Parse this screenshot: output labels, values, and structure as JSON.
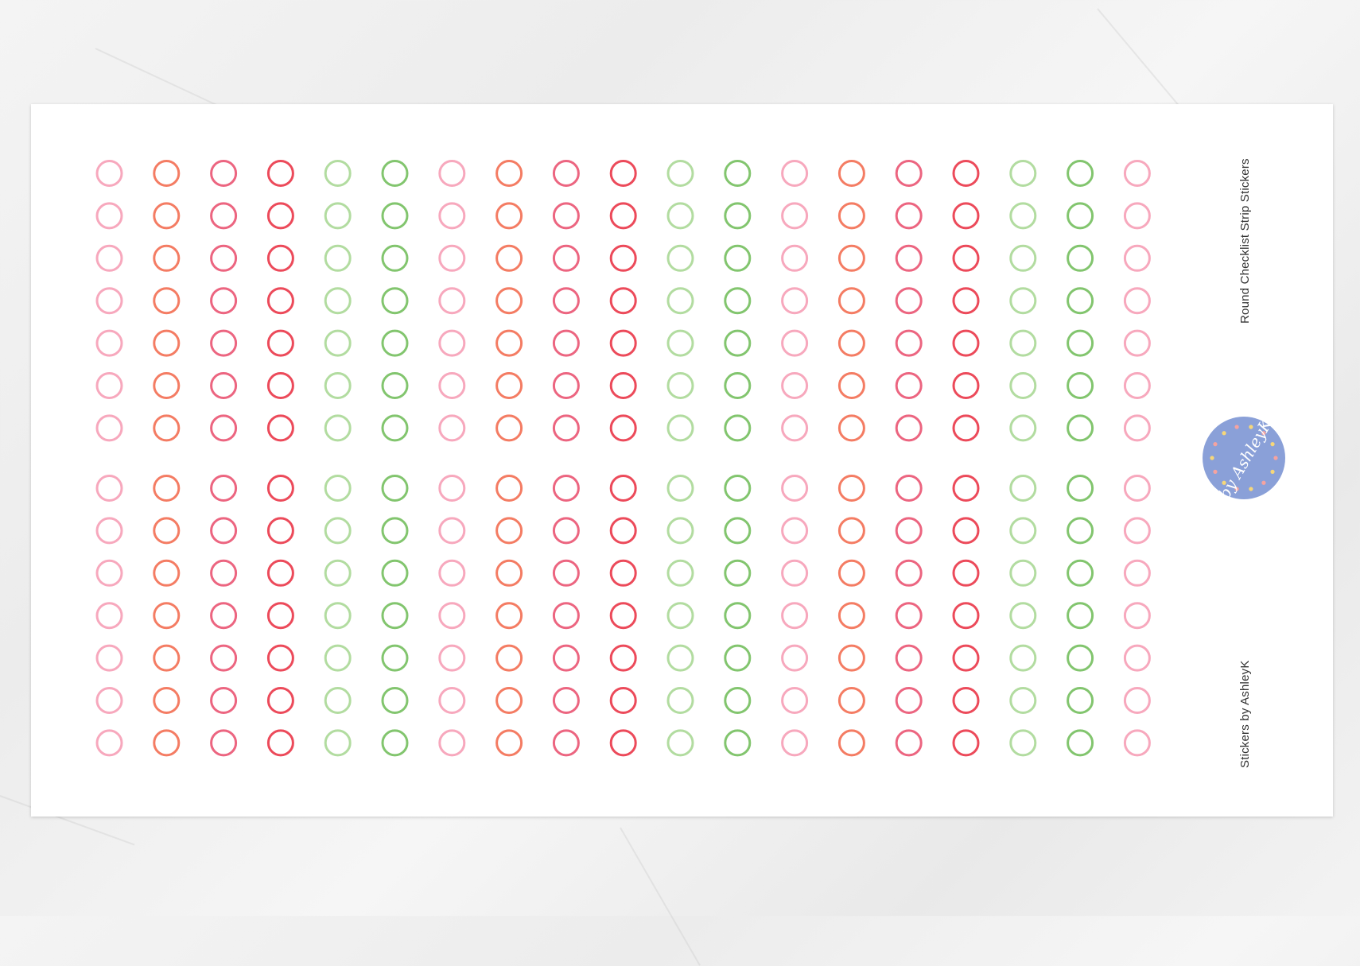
{
  "sheet": {
    "title": "Round Checklist Strip Stickers",
    "credit": "Stickers by AshleyK",
    "logo_text": "by AshleyK",
    "logo_color": "#8aa0d8"
  },
  "stickers": {
    "shape": "ring",
    "columns": 19,
    "row_groups": [
      7,
      7
    ],
    "column_color_cycle": [
      "#f7a8bd",
      "#f47c63",
      "#ec6580",
      "#ec4a5a",
      "#b2dca0",
      "#82c56e"
    ]
  }
}
